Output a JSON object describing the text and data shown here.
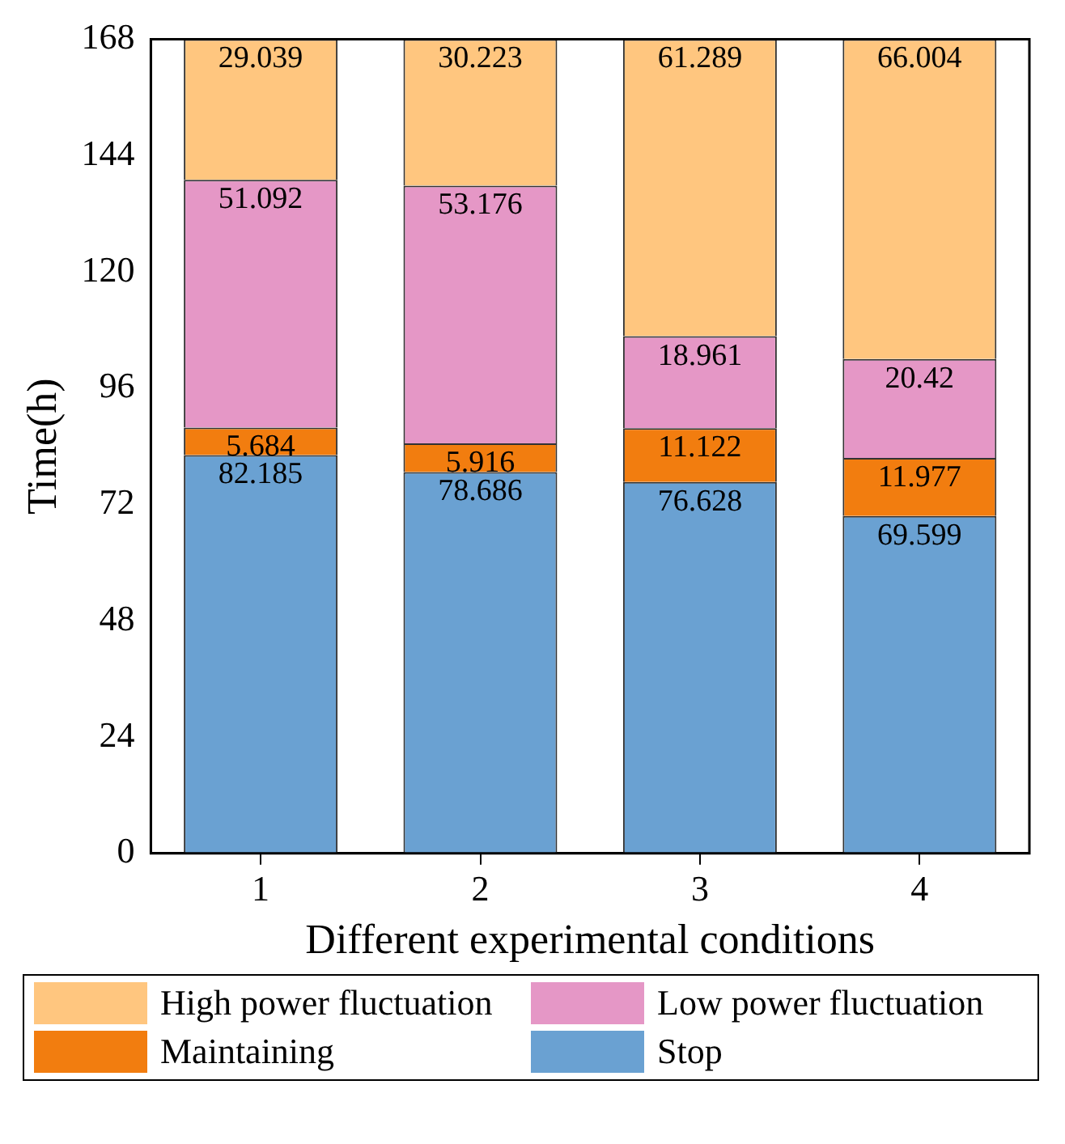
{
  "chart_data": {
    "type": "bar",
    "stacked": true,
    "xlabel": "Different experimental conditions",
    "ylabel": "Time(h)",
    "categories": [
      "1",
      "2",
      "3",
      "4"
    ],
    "series": [
      {
        "name": "Stop",
        "color": "#6aa1d2",
        "values": [
          82.185,
          78.686,
          76.628,
          69.599
        ]
      },
      {
        "name": "Maintaining",
        "color": "#f27d0f",
        "values": [
          5.684,
          5.916,
          11.122,
          11.977
        ]
      },
      {
        "name": "Low power fluctuation",
        "color": "#e597c6",
        "values": [
          51.092,
          53.176,
          18.961,
          20.42
        ]
      },
      {
        "name": "High power fluctuation",
        "color": "#ffc67f",
        "values": [
          29.039,
          30.223,
          61.289,
          66.004
        ]
      }
    ],
    "ylim": [
      0,
      168
    ],
    "yticks": [
      0,
      24,
      48,
      72,
      96,
      120,
      144,
      168
    ],
    "grid": false,
    "legend": "bottom",
    "data_labels": true
  }
}
